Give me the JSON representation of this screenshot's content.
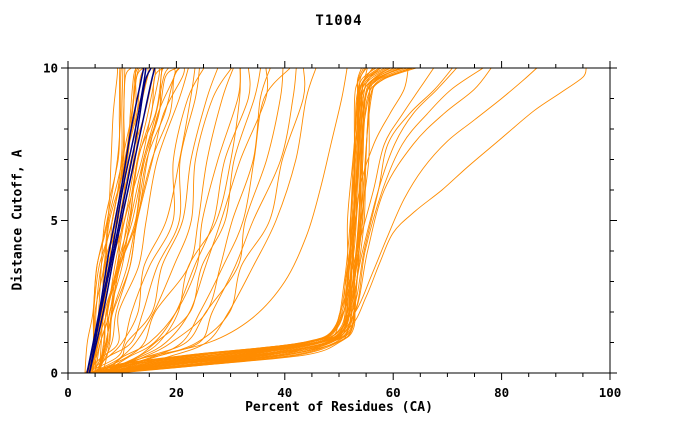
{
  "chart_data": {
    "type": "line",
    "title": "T1004",
    "xlabel": "Percent of Residues (CA)",
    "ylabel": "Distance Cutoff, A",
    "xlim": [
      0,
      100
    ],
    "ylim": [
      0,
      10
    ],
    "x_ticks": [
      0,
      20,
      40,
      60,
      80,
      100
    ],
    "y_ticks": [
      0,
      5,
      10
    ],
    "x_minor_step": 5,
    "y_minor_step": 1,
    "legend": "none",
    "grid": false,
    "colors": {
      "prediction": "#FF8C00",
      "reference": "#000080"
    },
    "seed": 20190417,
    "explicit_series": [
      {
        "color": "prediction",
        "width": 0.9,
        "points": [
          [
            4,
            0
          ],
          [
            22,
            0.35
          ],
          [
            45,
            0.8
          ],
          [
            52,
            1.5
          ],
          [
            55,
            2.5
          ],
          [
            57.5,
            3.6
          ],
          [
            60,
            4.6
          ],
          [
            64,
            5.3
          ],
          [
            69,
            6.0
          ],
          [
            74,
            6.8
          ],
          [
            80,
            7.7
          ],
          [
            86,
            8.6
          ],
          [
            91,
            9.2
          ],
          [
            95,
            9.7
          ],
          [
            95.6,
            10
          ]
        ]
      },
      {
        "color": "prediction",
        "width": 0.9,
        "points": [
          [
            5,
            0
          ],
          [
            28,
            0.45
          ],
          [
            48,
            1.0
          ],
          [
            53,
            2.0
          ],
          [
            56,
            3.2
          ],
          [
            59,
            4.5
          ],
          [
            62,
            5.7
          ],
          [
            65.5,
            6.7
          ],
          [
            70,
            7.6
          ],
          [
            75,
            8.3
          ],
          [
            80,
            9.0
          ],
          [
            84,
            9.6
          ],
          [
            86.5,
            10
          ]
        ]
      },
      {
        "color": "prediction",
        "width": 0.9,
        "points": [
          [
            4.5,
            0
          ],
          [
            14,
            0.5
          ],
          [
            26,
            1.0
          ],
          [
            34,
            1.8
          ],
          [
            40,
            3.0
          ],
          [
            44,
            4.5
          ],
          [
            46.5,
            6.0
          ],
          [
            48.5,
            7.5
          ],
          [
            50.5,
            9.0
          ],
          [
            51.5,
            10
          ]
        ]
      }
    ],
    "generated_groups": [
      {
        "name": "left-steep-fan",
        "color": "prediction",
        "count": 26,
        "noise": 0.8,
        "width": 0.9,
        "envelope": [
          [
            0,
            3.5,
            6
          ],
          [
            1,
            4,
            7.5
          ],
          [
            2,
            4.5,
            9
          ],
          [
            3.5,
            5.5,
            11
          ],
          [
            5,
            6.5,
            13
          ],
          [
            7,
            8,
            16
          ],
          [
            8.5,
            8.8,
            18.5
          ],
          [
            9.7,
            8.4,
            20.5
          ],
          [
            10,
            8.5,
            21.5
          ]
        ]
      },
      {
        "name": "mid-fan",
        "color": "prediction",
        "count": 18,
        "noise": 1.6,
        "width": 0.9,
        "envelope": [
          [
            0,
            4,
            8
          ],
          [
            0.5,
            6,
            18
          ],
          [
            1,
            8,
            25
          ],
          [
            2,
            10,
            31
          ],
          [
            3.5,
            13,
            35
          ],
          [
            5,
            15,
            38
          ],
          [
            7,
            17.5,
            41
          ],
          [
            9,
            20,
            44
          ],
          [
            10,
            21,
            46
          ]
        ]
      },
      {
        "name": "vertical-bundle",
        "color": "prediction",
        "count": 26,
        "noise": 0.6,
        "width": 0.9,
        "envelope": [
          [
            0,
            4,
            9
          ],
          [
            0.3,
            9,
            28
          ],
          [
            0.6,
            22,
            44
          ],
          [
            1,
            43,
            50.5
          ],
          [
            1.5,
            49.5,
            52.5
          ],
          [
            3,
            51,
            53.5
          ],
          [
            5,
            51.8,
            54.5
          ],
          [
            7,
            52.3,
            55
          ],
          [
            9,
            52.8,
            56
          ],
          [
            9.6,
            53.2,
            58
          ],
          [
            10,
            53.8,
            64
          ]
        ]
      },
      {
        "name": "upper-right-fan",
        "color": "prediction",
        "count": 6,
        "noise": 1.0,
        "width": 0.9,
        "envelope": [
          [
            0,
            5,
            8
          ],
          [
            0.5,
            18,
            38
          ],
          [
            1,
            44,
            50
          ],
          [
            2,
            50,
            53
          ],
          [
            4,
            52,
            56
          ],
          [
            6,
            53.5,
            60
          ],
          [
            7.5,
            55.5,
            65
          ],
          [
            8.5,
            57.5,
            70
          ],
          [
            9.3,
            60,
            76
          ],
          [
            10,
            62,
            81
          ]
        ]
      },
      {
        "name": "reference-bundle",
        "color": "reference",
        "count": 4,
        "noise": 0.25,
        "width": 1.5,
        "envelope": [
          [
            0,
            3.4,
            4.2
          ],
          [
            2,
            5.3,
            6.5
          ],
          [
            4,
            7.3,
            9
          ],
          [
            6,
            9.3,
            11.3
          ],
          [
            8,
            11.3,
            13.8
          ],
          [
            9.5,
            12.8,
            15.6
          ],
          [
            10,
            13.4,
            16.4
          ]
        ]
      }
    ]
  }
}
